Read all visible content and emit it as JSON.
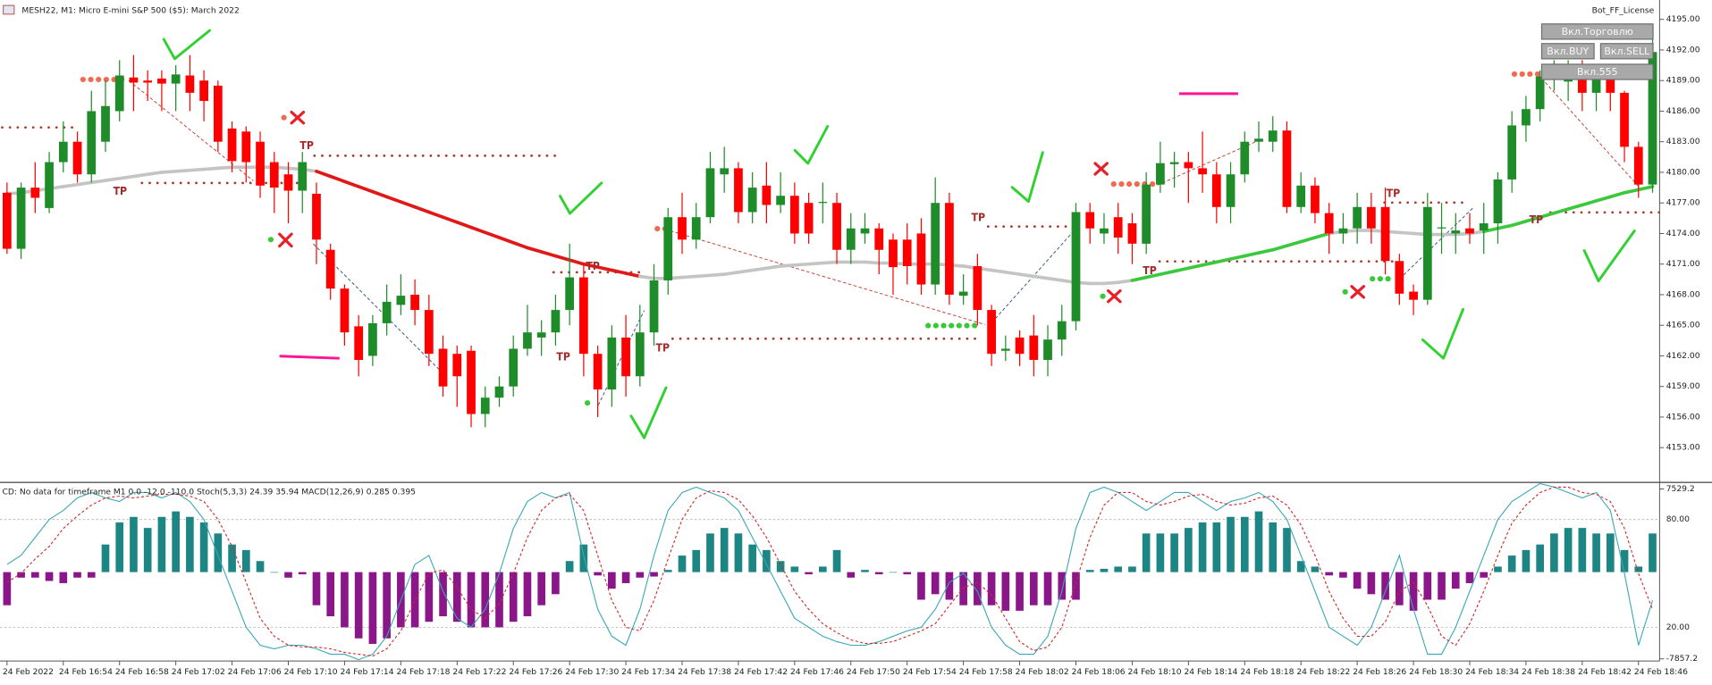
{
  "chart_data": [
    {
      "type": "candlestick",
      "title": "MESH22, M1: Micro E-mini S&P 500 ($5): March 2022",
      "categories": [
        "24 Feb 2022",
        null,
        null,
        null,
        "24 Feb 16:54",
        null,
        null,
        null,
        "24 Feb 16:58",
        null,
        null,
        null,
        "24 Feb 17:02",
        null,
        null,
        null,
        "24 Feb 17:06",
        null,
        null,
        null,
        "24 Feb 17:10",
        null,
        null,
        null,
        "24 Feb 17:14",
        null,
        null,
        null,
        "24 Feb 17:18",
        null,
        null,
        null,
        "24 Feb 17:22",
        null,
        null,
        null,
        "24 Feb 17:26",
        null,
        null,
        null,
        "24 Feb 17:30",
        null,
        null,
        null,
        "24 Feb 17:34",
        null,
        null,
        null,
        "24 Feb 17:38",
        null,
        null,
        null,
        "24 Feb 17:42",
        null,
        null,
        null,
        "24 Feb 17:46",
        null,
        null,
        null,
        "24 Feb 17:50",
        null,
        null,
        null,
        "24 Feb 17:54",
        null,
        null,
        null,
        "24 Feb 17:58",
        null,
        null,
        null,
        "24 Feb 18:02",
        null,
        null,
        null,
        "24 Feb 18:06",
        null,
        null,
        null,
        "24 Feb 18:10",
        null,
        null,
        null,
        "24 Feb 18:14",
        null,
        null,
        null,
        "24 Feb 18:18",
        null,
        null,
        null,
        "24 Feb 18:22",
        null,
        null,
        null,
        "24 Feb 18:26",
        null,
        null,
        null,
        "24 Feb 18:30",
        null,
        null,
        null,
        "24 Feb 18:34",
        null,
        null,
        null,
        "24 Feb 18:38",
        null,
        null,
        null,
        "24 Feb 18:42",
        null,
        null,
        null,
        "24 Feb 18:46",
        null
      ],
      "open": [
        4178,
        4172.5,
        4178.5,
        4176.5,
        4181,
        4183,
        4179.8,
        4183,
        4186,
        4189.3,
        4189,
        4189.2,
        4188.7,
        4189.5,
        4189,
        4188.5,
        4184.3,
        4184,
        4183,
        4181,
        4179.8,
        4178.2,
        4177.9,
        4172.4,
        4168.6,
        4164.9,
        4162,
        4165.2,
        4167,
        4168,
        4166.5,
        4162.7,
        4162.2,
        4162.5,
        4156.3,
        4157.9,
        4159,
        4162.7,
        4163.8,
        4164.3,
        4166.5,
        4169.7,
        4162.2,
        4158.7,
        4163.8,
        4160,
        4164.3,
        4169.4,
        4175.6,
        4173.4,
        4175.6,
        4179.8,
        4180.4,
        4176.1,
        4178.7,
        4176.8,
        4177.7,
        4177,
        4177,
        4177,
        4172.4,
        4174,
        4174.5,
        4173.4,
        4173.4,
        4174,
        4169,
        4177,
        4167.9,
        4170.8,
        4166.5,
        4162.5,
        4163.8,
        4164,
        4161.6,
        4163.6,
        4165.4,
        4176.1,
        4174,
        4175.6,
        4175,
        4173,
        4178.8,
        4180.8,
        4181,
        4180.4,
        4179.8,
        4176.6,
        4179.8,
        4183,
        4183,
        4184.1,
        4176.6,
        4178.7,
        4176,
        4174,
        4174.5,
        4176.6,
        4176.6,
        4171.3,
        4168.3,
        4167.5,
        4174.5,
        4174,
        4174.5,
        4174.3,
        4175,
        4179.3,
        4184.6,
        4186.2,
        4189.2,
        4188.9,
        4189.4,
        4187.8,
        4189.4,
        4187.8,
        4182.5,
        4178.8
      ],
      "high": [
        4179,
        4179,
        4181,
        4182,
        4185,
        4184,
        4188,
        4189,
        4191,
        4191.5,
        4190,
        4190,
        4190.5,
        4191.5,
        4190,
        4189,
        4185,
        4184.5,
        4184,
        4182,
        4181,
        4182,
        4179,
        4173,
        4169,
        4166,
        4166,
        4169,
        4170,
        4169.5,
        4168,
        4164,
        4163,
        4163,
        4159,
        4160,
        4164,
        4167,
        4165.5,
        4168,
        4173,
        4171,
        4163,
        4165,
        4166,
        4167,
        4171,
        4176.5,
        4178,
        4177,
        4182,
        4182.5,
        4181,
        4180,
        4181,
        4180,
        4179,
        4178,
        4179,
        4178,
        4176,
        4176,
        4175,
        4174,
        4175,
        4175.5,
        4179.5,
        4178,
        4170,
        4172,
        4167,
        4164,
        4164.5,
        4166,
        4165,
        4167,
        4177,
        4177,
        4176,
        4177,
        4176,
        4180,
        4183,
        4182,
        4182,
        4184,
        4181,
        4181,
        4184,
        4185,
        4185.5,
        4185,
        4180,
        4179.5,
        4177,
        4176,
        4178,
        4178,
        4178.5,
        4172,
        4169,
        4178,
        4177,
        4176,
        4176,
        4177,
        4180,
        4186,
        4187.5,
        4190,
        4191,
        4191,
        4191,
        4190.5,
        4190,
        4188,
        4183,
        4193
      ],
      "low": [
        4172,
        4171.5,
        4176,
        4176,
        4180,
        4179,
        4179,
        4182,
        4185,
        4186,
        4187,
        4186,
        4186,
        4186,
        4185,
        4182,
        4180,
        4179,
        4177.5,
        4176,
        4175,
        4176,
        4171,
        4167.5,
        4163,
        4160,
        4161,
        4164,
        4166,
        4165,
        4161,
        4158,
        4157,
        4155,
        4155,
        4157,
        4158,
        4162,
        4162,
        4163,
        4165,
        4160,
        4156,
        4157,
        4158,
        4159,
        4163,
        4168,
        4172,
        4172.5,
        4175,
        4178,
        4175,
        4175,
        4175,
        4176,
        4173,
        4173,
        4175,
        4171,
        4171,
        4173,
        4170,
        4168,
        4169,
        4168,
        4168,
        4167,
        4167,
        4165,
        4161,
        4161.5,
        4161,
        4160,
        4160,
        4162,
        4164.5,
        4173,
        4173,
        4172,
        4171,
        4172,
        4178,
        4178.5,
        4177,
        4178,
        4175,
        4175,
        4179,
        4182,
        4182,
        4176,
        4176,
        4175,
        4172,
        4173,
        4173,
        4173,
        4170,
        4167,
        4166,
        4167,
        4172,
        4172,
        4173,
        4172,
        4173,
        4178,
        4183,
        4185,
        4188,
        4187,
        4186,
        4186,
        4186,
        4181,
        4177.5,
        4178
      ],
      "close": [
        4172.5,
        4178.5,
        4177.5,
        4181,
        4183,
        4179.8,
        4186,
        4186.5,
        4189.5,
        4188.8,
        4188.8,
        4188.7,
        4189.6,
        4187.8,
        4187,
        4183,
        4181.1,
        4181,
        4178.7,
        4178.5,
        4178.2,
        4181,
        4173.4,
        4168.6,
        4164.3,
        4161.6,
        4165.2,
        4167.3,
        4167.9,
        4166.5,
        4162.2,
        4159,
        4160,
        4156.3,
        4157.9,
        4159,
        4162.7,
        4164.3,
        4164.3,
        4166.5,
        4169.7,
        4162.2,
        4158.7,
        4163.8,
        4160,
        4164.3,
        4169.4,
        4175.6,
        4173.4,
        4175.6,
        4180.4,
        4180.4,
        4176.1,
        4178.5,
        4176.8,
        4177.7,
        4174,
        4174,
        4177.1,
        4172.4,
        4174.5,
        4174.5,
        4172.4,
        4170.7,
        4170.8,
        4169,
        4177,
        4168,
        4168.3,
        4166.5,
        4162.2,
        4162.7,
        4162.2,
        4161.6,
        4163.6,
        4165.4,
        4176.1,
        4174.5,
        4174.5,
        4173.6,
        4173,
        4178.8,
        4180.9,
        4181,
        4180.4,
        4179.8,
        4176.6,
        4179.8,
        4183,
        4183.3,
        4184.1,
        4176.6,
        4178.7,
        4176,
        4174,
        4174.5,
        4176.6,
        4174.5,
        4171.3,
        4168.1,
        4167.5,
        4176.6,
        4174.6,
        4174.3,
        4174,
        4175,
        4179.3,
        4184.6,
        4186.2,
        4189.4,
        4189.7,
        4189.4,
        4187.8,
        4189.4,
        4187.8,
        4182.5,
        4178.8,
        4191.8
      ],
      "up_color": "#1f8c2a",
      "down_color": "#ff0000",
      "series": [
        {
          "color": "#c4c4c4",
          "rise_color": "#3cc83c",
          "fall_color": "#e01818",
          "values": [
            4177.9,
            4178.0,
            4178.2,
            4178.4,
            4178.6,
            4178.8,
            4179.0,
            4179.2,
            4179.4,
            4179.6,
            4179.8,
            4180.0,
            4180.1,
            4180.2,
            4180.3,
            4180.4,
            4180.5,
            4180.5,
            4180.5,
            4180.5,
            4180.4,
            4180.3,
            4180.1,
            4179.6,
            4179.1,
            4178.6,
            4178.1,
            4177.6,
            4177.1,
            4176.6,
            4176.1,
            4175.6,
            4175.1,
            4174.6,
            4174.1,
            4173.6,
            4173.1,
            4172.6,
            4172.2,
            4171.8,
            4171.4,
            4171.0,
            4170.7,
            4170.4,
            4170.1,
            4169.8,
            4169.6,
            4169.6,
            4169.7,
            4169.8,
            4169.9,
            4170.0,
            4170.2,
            4170.4,
            4170.6,
            4170.8,
            4170.9,
            4171.0,
            4171.1,
            4171.2,
            4171.2,
            4171.2,
            4171.1,
            4171.1,
            4171.0,
            4171.0,
            4171.0,
            4170.9,
            4170.8,
            4170.6,
            4170.4,
            4170.2,
            4170.0,
            4169.8,
            4169.6,
            4169.4,
            4169.2,
            4169.1,
            4169.1,
            4169.2,
            4169.4,
            4169.7,
            4170.0,
            4170.3,
            4170.6,
            4170.9,
            4171.2,
            4171.5,
            4171.8,
            4172.1,
            4172.4,
            4172.8,
            4173.2,
            4173.6,
            4174.0,
            4174.2,
            4174.3,
            4174.3,
            4174.2,
            4174.1,
            4174.0,
            4173.9,
            4173.9,
            4173.9,
            4174.0,
            4174.2,
            4174.5,
            4174.8,
            4175.2,
            4175.6,
            4176.0,
            4176.4,
            4176.8,
            4177.2,
            4177.6,
            4178.0,
            4178.3,
            4178.6
          ]
        }
      ],
      "ylim": [
        4149.8,
        4196.9
      ],
      "yticks": [
        {
          "value": 4195,
          "label": "4195.00"
        },
        {
          "value": 4192,
          "label": "4192.00"
        },
        {
          "value": 4189,
          "label": "4189.00"
        },
        {
          "value": 4186,
          "label": "4186.00"
        },
        {
          "value": 4183,
          "label": "4183.00"
        },
        {
          "value": 4180,
          "label": "4180.00"
        },
        {
          "value": 4177,
          "label": "4177.00"
        },
        {
          "value": 4174,
          "label": "4174.00"
        },
        {
          "value": 4171,
          "label": "4171.00"
        },
        {
          "value": 4168,
          "label": "4168.00"
        },
        {
          "value": 4165,
          "label": "4165.00"
        },
        {
          "value": 4162,
          "label": "4162.00"
        },
        {
          "value": 4159,
          "label": "4159.00"
        },
        {
          "value": 4156,
          "label": "4156.00"
        },
        {
          "value": 4153,
          "label": "4153.00"
        }
      ],
      "annotations": [
        "TP",
        "TP",
        "TP",
        "TP",
        "TP",
        "TP",
        "TP",
        "TP",
        "TP"
      ]
    },
    {
      "type": "oscillator",
      "title": "CD: No data for timeframe M1 0.0 -12.0 -110.0 Stoch(5,3,3) 24.39 35.94 MACD(12,26,9) 0.285 0.395",
      "values": [
        -3000,
        -500,
        -500,
        -800,
        -1000,
        -500,
        -500,
        2500,
        4500,
        5000,
        4000,
        5000,
        5500,
        5000,
        4500,
        3500,
        2500,
        2000,
        1000,
        0,
        -500,
        -200,
        -3000,
        -4000,
        -5000,
        -6000,
        -6500,
        -6000,
        -5000,
        -5000,
        -4500,
        -4000,
        -4500,
        -5000,
        -5000,
        -5000,
        -4500,
        -4000,
        -3000,
        -2000,
        1000,
        2500,
        -300,
        -1500,
        -1000,
        -500,
        -400,
        200,
        1500,
        2000,
        3500,
        4000,
        3500,
        2500,
        2000,
        1000,
        500,
        -200,
        500,
        2000,
        -500,
        200,
        -200,
        0,
        -200,
        -2500,
        -2000,
        -2500,
        -3000,
        -3000,
        -3000,
        -3500,
        -3500,
        -3000,
        -3000,
        -2500,
        -2500,
        200,
        300,
        500,
        500,
        3500,
        3500,
        3500,
        4000,
        4500,
        4500,
        5000,
        5000,
        5500,
        4500,
        4000,
        1000,
        500,
        -300,
        -500,
        -1500,
        -2000,
        -2500,
        -3000,
        -3500,
        -2500,
        -2500,
        -1500,
        -1000,
        -500,
        500,
        1500,
        2000,
        2500,
        3500,
        4000,
        4000,
        3500,
        3500,
        2000,
        500,
        3500
      ],
      "up_color": "#1e8585",
      "down_color": "#8a168a",
      "ylim": [
        -7857.2,
        7529.2
      ],
      "yticks": [
        7529.2,
        -7857.2
      ],
      "y2lim": [
        0,
        100
      ],
      "y2ticks": [
        {
          "value": 80,
          "label": "80.00"
        },
        {
          "value": 20,
          "label": "20.00"
        }
      ],
      "series": [
        {
          "color": "#3aa8b4",
          "axis": "y2",
          "values": [
            55,
            60,
            70,
            80,
            85,
            92,
            95,
            92,
            90,
            95,
            95,
            92,
            95,
            90,
            80,
            60,
            40,
            20,
            10,
            8,
            10,
            10,
            8,
            5,
            5,
            2,
            5,
            15,
            35,
            55,
            60,
            40,
            25,
            20,
            30,
            50,
            75,
            90,
            95,
            92,
            95,
            60,
            30,
            15,
            10,
            30,
            60,
            85,
            95,
            98,
            95,
            92,
            85,
            70,
            55,
            40,
            25,
            20,
            15,
            12,
            10,
            10,
            12,
            15,
            18,
            20,
            30,
            45,
            50,
            40,
            20,
            10,
            5,
            5,
            15,
            40,
            75,
            95,
            98,
            95,
            90,
            85,
            90,
            95,
            95,
            90,
            85,
            90,
            92,
            95,
            90,
            80,
            60,
            40,
            20,
            15,
            10,
            20,
            40,
            60,
            30,
            5,
            5,
            20,
            40,
            60,
            80,
            90,
            95,
            100,
            98,
            95,
            92,
            95,
            85,
            50,
            10,
            35
          ]
        },
        {
          "color": "#d02828",
          "axis": "y2",
          "dashed": true,
          "values": [
            45,
            50,
            58,
            65,
            75,
            82,
            88,
            92,
            93,
            92,
            93,
            94,
            94,
            93,
            90,
            80,
            65,
            45,
            25,
            15,
            10,
            9,
            9,
            8,
            6,
            5,
            4,
            8,
            18,
            35,
            50,
            52,
            42,
            30,
            25,
            33,
            50,
            70,
            85,
            92,
            94,
            85,
            60,
            35,
            20,
            18,
            35,
            58,
            80,
            92,
            96,
            95,
            91,
            82,
            70,
            55,
            40,
            30,
            22,
            17,
            13,
            11,
            11,
            12,
            15,
            18,
            22,
            32,
            42,
            45,
            38,
            25,
            12,
            7,
            9,
            20,
            45,
            70,
            88,
            95,
            95,
            90,
            88,
            90,
            93,
            94,
            90,
            88,
            89,
            92,
            93,
            88,
            77,
            60,
            40,
            25,
            15,
            15,
            23,
            40,
            45,
            32,
            15,
            10,
            22,
            40,
            60,
            78,
            88,
            95,
            98,
            98,
            95,
            94,
            90,
            75,
            50,
            30
          ]
        }
      ]
    }
  ],
  "ui": {
    "license": "Bot_FF_License",
    "buttons": [
      "Вкл.Торговлю",
      "Вкл.BUY",
      "Вкл.SELL",
      "Вкл.555"
    ]
  }
}
